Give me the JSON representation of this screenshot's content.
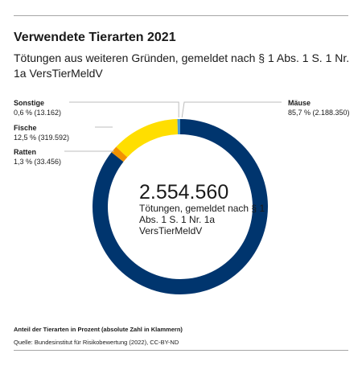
{
  "header": {
    "title": "Verwendete Tierarten 2021",
    "subtitle": "Tötungen aus weiteren Gründen, gemeldet nach § 1 Abs. 1 S. 1 Nr. 1a VersTierMeldV"
  },
  "center": {
    "total": "2.554.560",
    "description": "Tötungen, gemeldet nach § 1 Abs. 1 S. 1 Nr. 1a VersTierMeldV"
  },
  "chart_data": {
    "type": "pie",
    "title": "Verwendete Tierarten 2021",
    "subtitle": "Tötungen aus weiteren Gründen, gemeldet nach § 1 Abs. 1 S. 1 Nr. 1a VersTierMeldV",
    "donut": true,
    "slices": [
      {
        "name": "Mäuse",
        "percent_label": "85,7 % (2.188.350)",
        "value": 2188350,
        "color": "#00356e"
      },
      {
        "name": "Ratten",
        "percent_label": "1,3 % (33.456)",
        "value": 33456,
        "color": "#f39200"
      },
      {
        "name": "Fische",
        "percent_label": "12,5 % (319.592)",
        "value": 319592,
        "color": "#ffde00"
      },
      {
        "name": "Sonstige",
        "percent_label": "0,6 % (13.162)",
        "value": 13162,
        "color": "#4a9ad4"
      }
    ]
  },
  "footer": {
    "note": "Anteil der Tierarten in Prozent (absolute Zahl in Klammern)",
    "source": "Quelle: Bundesinstitut für Risikobewertung (2022), CC-BY-ND"
  }
}
